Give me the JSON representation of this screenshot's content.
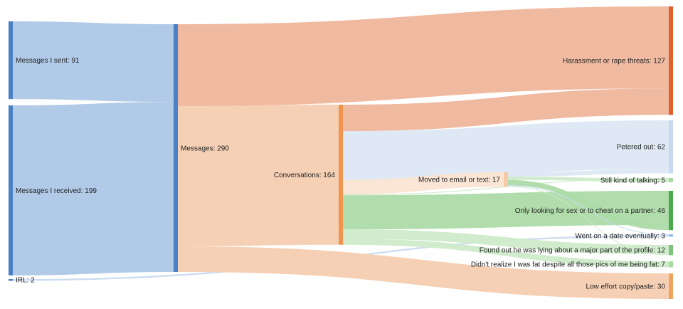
{
  "diagram": {
    "type": "sankey",
    "nodes": [
      {
        "id": "sent",
        "label": "Messages I sent: 91",
        "value": 91,
        "color": "#4a80c4"
      },
      {
        "id": "received",
        "label": "Messages I received: 199",
        "value": 199,
        "color": "#4a80c4"
      },
      {
        "id": "irl",
        "label": "IRL: 2",
        "value": 2,
        "color": "#4a80c4"
      },
      {
        "id": "messages",
        "label": "Messages: 290",
        "value": 290,
        "color": "#4a80c4"
      },
      {
        "id": "conversations",
        "label": "Conversations: 164",
        "value": 164,
        "color": "#f0944f"
      },
      {
        "id": "moved",
        "label": "Moved to email or text: 17",
        "value": 17,
        "color": "#f5c9a6"
      },
      {
        "id": "harassment",
        "label": "Harassment or rape threats: 127",
        "value": 127,
        "color": "#e0602c"
      },
      {
        "id": "petered",
        "label": "Petered out: 62",
        "value": 62,
        "color": "#c6d9ee"
      },
      {
        "id": "still",
        "label": "Still kind of talking: 5",
        "value": 5,
        "color": "#a9dba3"
      },
      {
        "id": "sex",
        "label": "Only looking for sex or to cheat on a partner: 46",
        "value": 46,
        "color": "#4aa84e"
      },
      {
        "id": "date",
        "label": "Went on a date eventually: 3",
        "value": 3,
        "color": "#9cbfe4"
      },
      {
        "id": "lying",
        "label": "Found out he was lying about a major part of the profile: 12",
        "value": 12,
        "color": "#7bc47a"
      },
      {
        "id": "fat",
        "label": "Didn't realize I was fat despite all those pics of me being fat: 7",
        "value": 7,
        "color": "#a9dba3"
      },
      {
        "id": "loweffort",
        "label": "Low effort copy/paste: 30",
        "value": 30,
        "color": "#f0a25e"
      }
    ],
    "links": [
      {
        "source": "sent",
        "target": "messages",
        "value": 91,
        "color": "#adc7e6"
      },
      {
        "source": "received",
        "target": "messages",
        "value": 199,
        "color": "#adc7e6"
      },
      {
        "source": "irl",
        "target": "date",
        "value": 2,
        "color": "#c9dbef"
      },
      {
        "source": "messages",
        "target": "harassment",
        "value": 96,
        "color": "#efb69c"
      },
      {
        "source": "messages",
        "target": "conversations",
        "value": 164,
        "color": "#f6cdb0"
      },
      {
        "source": "messages",
        "target": "loweffort",
        "value": 30,
        "color": "#f6cdb0"
      },
      {
        "source": "conversations",
        "target": "harassment",
        "value": 31,
        "color": "#efb69c"
      },
      {
        "source": "conversations",
        "target": "petered",
        "value": 57,
        "color": "#dde8f4"
      },
      {
        "source": "conversations",
        "target": "moved",
        "value": 17,
        "color": "#fbe4d2"
      },
      {
        "source": "conversations",
        "target": "sex",
        "value": 40,
        "color": "#acdba6"
      },
      {
        "source": "conversations",
        "target": "still",
        "value": 1,
        "color": "#cdebc9"
      },
      {
        "source": "conversations",
        "target": "lying",
        "value": 11,
        "color": "#cdebc9"
      },
      {
        "source": "conversations",
        "target": "fat",
        "value": 7,
        "color": "#cdebc9"
      },
      {
        "source": "moved",
        "target": "petered",
        "value": 5,
        "color": "#dde8f4"
      },
      {
        "source": "moved",
        "target": "still",
        "value": 4,
        "color": "#cdebc9"
      },
      {
        "source": "moved",
        "target": "sex",
        "value": 6,
        "color": "#acdba6"
      },
      {
        "source": "moved",
        "target": "date",
        "value": 1,
        "color": "#c9dbef"
      },
      {
        "source": "moved",
        "target": "lying",
        "value": 1,
        "color": "#cdebc9"
      }
    ]
  }
}
